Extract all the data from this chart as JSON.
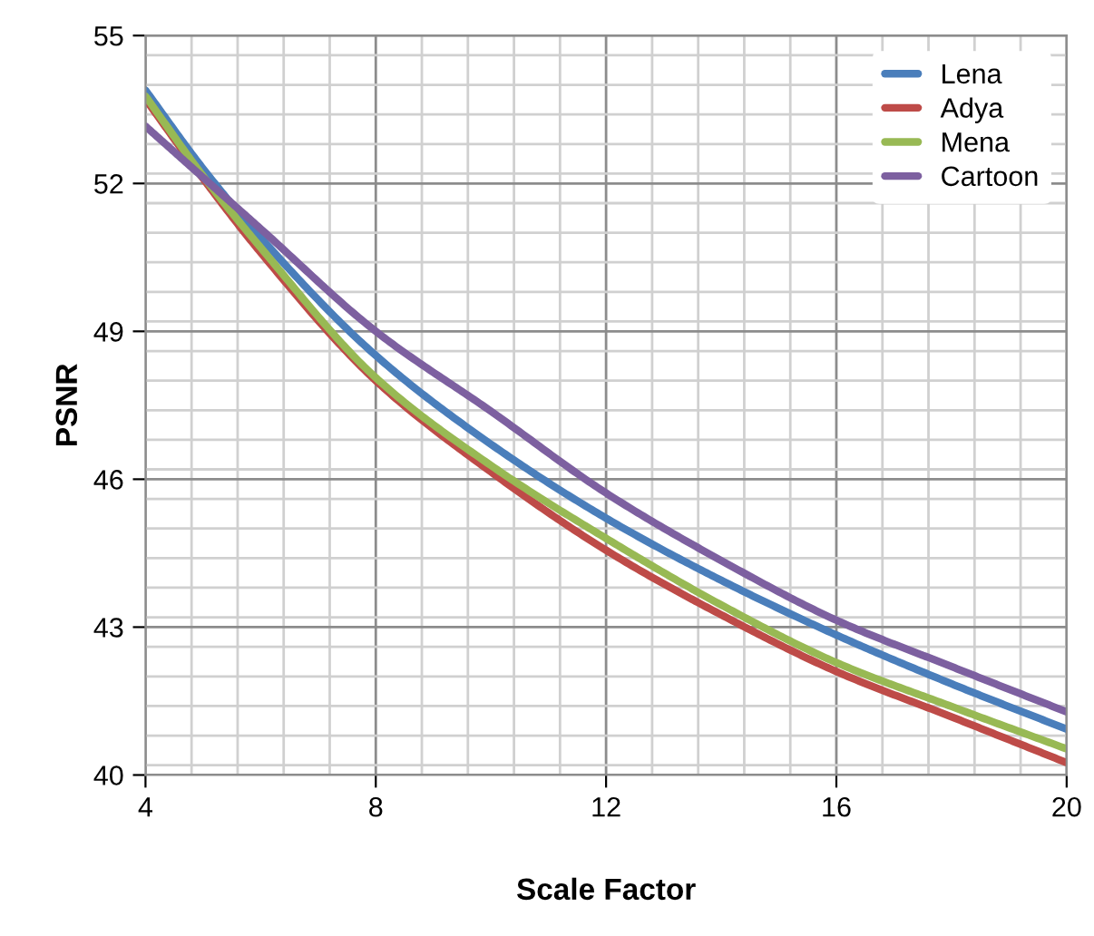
{
  "chart_data": {
    "type": "line",
    "xlabel": "Scale Factor",
    "ylabel": "PSNR",
    "x": [
      4,
      5,
      6,
      8,
      10,
      12,
      14,
      16,
      18,
      20
    ],
    "xlim": [
      4,
      20
    ],
    "xticks": [
      4,
      8,
      12,
      16,
      20
    ],
    "ylim": [
      40,
      55
    ],
    "yticks": [
      40,
      43,
      46,
      49,
      52,
      55
    ],
    "grid": true,
    "legend": "top right",
    "marker": "none",
    "line_style": "solid",
    "series": [
      {
        "name": "Lena",
        "color": "#4a7ebb",
        "values": [
          53.89,
          52.3,
          50.9,
          48.51,
          46.71,
          45.21,
          43.95,
          42.84,
          41.85,
          40.93
        ]
      },
      {
        "name": "Adya",
        "color": "#be4b48",
        "values": [
          53.71,
          52.1,
          50.6,
          48.0,
          46.15,
          44.56,
          43.25,
          42.1,
          41.18,
          40.25
        ]
      },
      {
        "name": "Mena",
        "color": "#98b954",
        "values": [
          53.77,
          52.15,
          50.7,
          48.06,
          46.28,
          44.8,
          43.45,
          42.28,
          41.39,
          40.53
        ]
      },
      {
        "name": "Cartoon",
        "color": "#7d60a0",
        "values": [
          53.16,
          52.12,
          51.08,
          49.0,
          47.38,
          45.72,
          44.35,
          43.14,
          42.2,
          41.28
        ]
      }
    ]
  }
}
